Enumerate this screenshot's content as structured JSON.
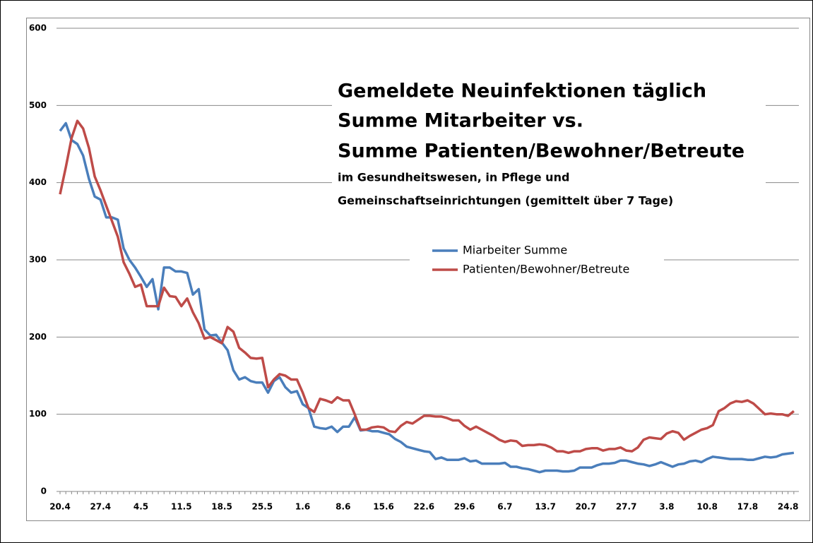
{
  "chart_data": {
    "type": "line",
    "title": [
      "Gemeldete Neuinfektionen täglich",
      "Summe Mitarbeiter vs.",
      "Summe Patienten/Bewohner/Betreute"
    ],
    "subtitle": [
      "im Gesundheitswesen, in Pflege und",
      "Gemeinschaftseinrichtungen  (gemittelt über 7 Tage)"
    ],
    "categories": [
      "20.4",
      null,
      null,
      null,
      null,
      null,
      null,
      "27.4",
      null,
      null,
      null,
      null,
      null,
      null,
      "4.5",
      null,
      null,
      null,
      null,
      null,
      null,
      "11.5",
      null,
      null,
      null,
      null,
      null,
      null,
      "18.5",
      null,
      null,
      null,
      null,
      null,
      null,
      "25.5",
      null,
      null,
      null,
      null,
      null,
      null,
      "1.6",
      null,
      null,
      null,
      null,
      null,
      null,
      "8.6",
      null,
      null,
      null,
      null,
      null,
      null,
      "15.6",
      null,
      null,
      null,
      null,
      null,
      null,
      "22.6",
      null,
      null,
      null,
      null,
      null,
      null,
      "29.6",
      null,
      null,
      null,
      null,
      null,
      null,
      "6.7",
      null,
      null,
      null,
      null,
      null,
      null,
      "13.7",
      null,
      null,
      null,
      null,
      null,
      null,
      "20.7",
      null,
      null,
      null,
      null,
      null,
      null,
      "27.7",
      null,
      null,
      null,
      null,
      null,
      null,
      "3.8",
      null,
      null,
      null,
      null,
      null,
      null,
      "10.8",
      null,
      null,
      null,
      null,
      null,
      null,
      "17.8",
      null,
      null,
      null,
      null,
      null,
      null,
      "24.8",
      null
    ],
    "series": [
      {
        "name": "Miarbeiter Summe",
        "color": "#4a7ebb",
        "values": [
          467,
          477,
          455,
          450,
          435,
          405,
          382,
          378,
          355,
          355,
          352,
          315,
          300,
          290,
          278,
          265,
          275,
          236,
          290,
          290,
          285,
          285,
          283,
          255,
          262,
          210,
          202,
          203,
          193,
          183,
          157,
          145,
          148,
          143,
          141,
          141,
          128,
          143,
          148,
          135,
          128,
          130,
          113,
          108,
          84,
          82,
          81,
          84,
          77,
          84,
          84,
          96,
          79,
          80,
          78,
          78,
          76,
          74,
          68,
          64,
          58,
          56,
          54,
          52,
          51,
          42,
          44,
          41,
          41,
          41,
          43,
          39,
          40,
          36,
          36,
          36,
          36,
          37,
          32,
          32,
          30,
          29,
          27,
          25,
          27,
          27,
          27,
          26,
          26,
          27,
          31,
          31,
          31,
          34,
          36,
          36,
          37,
          40,
          40,
          38,
          36,
          35,
          33,
          35,
          38,
          35,
          32,
          35,
          36,
          39,
          40,
          38,
          42,
          45,
          44,
          43,
          42,
          42,
          42,
          41,
          41,
          43,
          45,
          44,
          45,
          48,
          49,
          50
        ]
      },
      {
        "name": "Patienten/Bewohner/Betreute",
        "color": "#be4b48",
        "values": [
          385,
          420,
          458,
          480,
          470,
          445,
          408,
          390,
          370,
          350,
          330,
          297,
          282,
          265,
          268,
          240,
          240,
          240,
          264,
          253,
          252,
          240,
          250,
          232,
          218,
          198,
          200,
          196,
          192,
          213,
          207,
          186,
          180,
          173,
          172,
          173,
          135,
          145,
          152,
          150,
          145,
          145,
          128,
          108,
          103,
          120,
          118,
          115,
          122,
          118,
          118,
          100,
          80,
          80,
          83,
          84,
          83,
          78,
          77,
          85,
          90,
          88,
          93,
          98,
          98,
          97,
          97,
          95,
          92,
          92,
          85,
          80,
          84,
          80,
          76,
          72,
          67,
          64,
          66,
          65,
          59,
          60,
          60,
          61,
          60,
          57,
          52,
          52,
          50,
          52,
          52,
          55,
          56,
          56,
          53,
          55,
          55,
          57,
          53,
          52,
          57,
          67,
          70,
          69,
          68,
          75,
          78,
          76,
          67,
          72,
          76,
          80,
          82,
          86,
          104,
          108,
          114,
          117,
          116,
          118,
          114,
          107,
          100,
          101,
          100,
          100,
          98,
          104
        ]
      }
    ],
    "ylim": [
      0,
      600
    ],
    "yticks": [
      0,
      100,
      200,
      300,
      400,
      500,
      600
    ],
    "grid": true
  }
}
